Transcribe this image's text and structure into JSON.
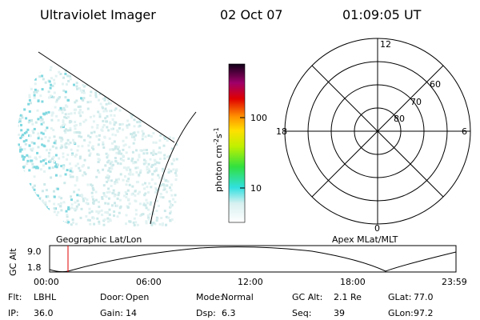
{
  "header": {
    "title": "Ultraviolet Imager",
    "date": "02 Oct 07",
    "time": "01:09:05 UT"
  },
  "colorbar": {
    "label": [
      "photon cm",
      "-2",
      "s",
      "-1"
    ],
    "ticks": [
      "100",
      "10"
    ]
  },
  "polar": {
    "clock": [
      "12",
      "18",
      "6",
      "0"
    ],
    "latitudes": [
      "60",
      "70",
      "80"
    ]
  },
  "timeline": {
    "left_title": "Geographic Lat/Lon",
    "right_title": "Apex MLat/MLT",
    "axis_label": "GC Alt",
    "yticks": [
      "9.0",
      "1.8"
    ],
    "xticks": [
      "00:00",
      "06:00",
      "12:00",
      "18:00",
      "23:59"
    ]
  },
  "info": [
    [
      {
        "label": "Flt:",
        "value": "LBHL"
      },
      {
        "label": "Door:",
        "value": "Open"
      },
      {
        "label": "Mode:",
        "value": "Normal"
      },
      {
        "label": "GC Alt:",
        "value": "2.1 Re"
      },
      {
        "label": "GLat:",
        "value": "77.0"
      }
    ],
    [
      {
        "label": "IP:",
        "value": "36.0"
      },
      {
        "label": "Gain:",
        "value": "14"
      },
      {
        "label": "Dsp:",
        "value": "6.3"
      },
      {
        "label": "Seq:",
        "value": "39"
      },
      {
        "label": "GLon:",
        "value": "97.2"
      }
    ]
  ]
}
